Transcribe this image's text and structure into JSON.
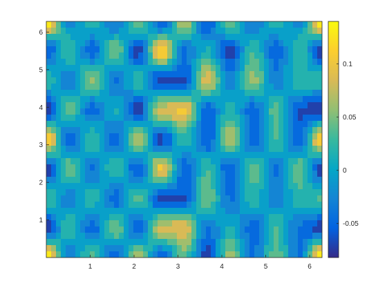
{
  "chart_data": {
    "type": "heatmap",
    "subtype": "filled-contour",
    "title": "",
    "xlabel": "",
    "ylabel": "",
    "xlim": [
      0,
      6.2832
    ],
    "ylim": [
      0,
      6.2832
    ],
    "x_ticks": [
      1,
      2,
      3,
      4,
      5,
      6
    ],
    "y_ticks": [
      1,
      2,
      3,
      4,
      5,
      6
    ],
    "colorbar": {
      "lim": [
        -0.082,
        0.14
      ],
      "ticks": [
        -0.05,
        0,
        0.05,
        0.1
      ],
      "tick_labels": [
        "-0.05",
        "0",
        "0.05",
        "0.1"
      ],
      "colormap": "parula"
    },
    "grid": false,
    "field": {
      "grid_size": 13,
      "approx_values_rows_from_top": [
        [
          0.13,
          -0.02,
          0.02,
          -0.04,
          0.05,
          -0.06,
          0.07,
          -0.06,
          0.05,
          -0.04,
          0.02,
          -0.02,
          0.13
        ],
        [
          -0.06,
          0.03,
          -0.05,
          0.05,
          -0.07,
          0.12,
          -0.04,
          0.01,
          -0.07,
          0.03,
          -0.05,
          0.03,
          -0.07
        ],
        [
          0.02,
          -0.03,
          0.06,
          -0.04,
          0.02,
          -0.07,
          -0.06,
          0.09,
          -0.03,
          0.06,
          -0.03,
          0.02,
          0.02
        ],
        [
          -0.08,
          0.04,
          -0.05,
          0.01,
          -0.07,
          0.08,
          0.1,
          -0.05,
          0.02,
          -0.05,
          0.04,
          -0.06,
          -0.08
        ],
        [
          0.12,
          -0.06,
          0.03,
          -0.05,
          0.07,
          -0.07,
          0.02,
          -0.06,
          0.07,
          -0.05,
          0.03,
          -0.06,
          0.12
        ],
        [
          -0.07,
          0.05,
          -0.04,
          0.03,
          -0.06,
          0.1,
          -0.05,
          0.03,
          -0.06,
          0.04,
          -0.04,
          0.05,
          -0.07
        ],
        [
          0.03,
          -0.03,
          0.02,
          -0.05,
          0.04,
          -0.07,
          -0.06,
          0.05,
          -0.04,
          0.02,
          -0.03,
          0.02,
          0.03
        ],
        [
          -0.07,
          0.03,
          -0.05,
          0.05,
          -0.06,
          0.08,
          0.09,
          -0.04,
          0.01,
          -0.05,
          0.03,
          -0.04,
          -0.07
        ],
        [
          0.13,
          -0.04,
          0.04,
          -0.06,
          0.07,
          -0.05,
          0.04,
          -0.07,
          0.06,
          -0.04,
          0.04,
          -0.04,
          0.13
        ]
      ]
    }
  }
}
